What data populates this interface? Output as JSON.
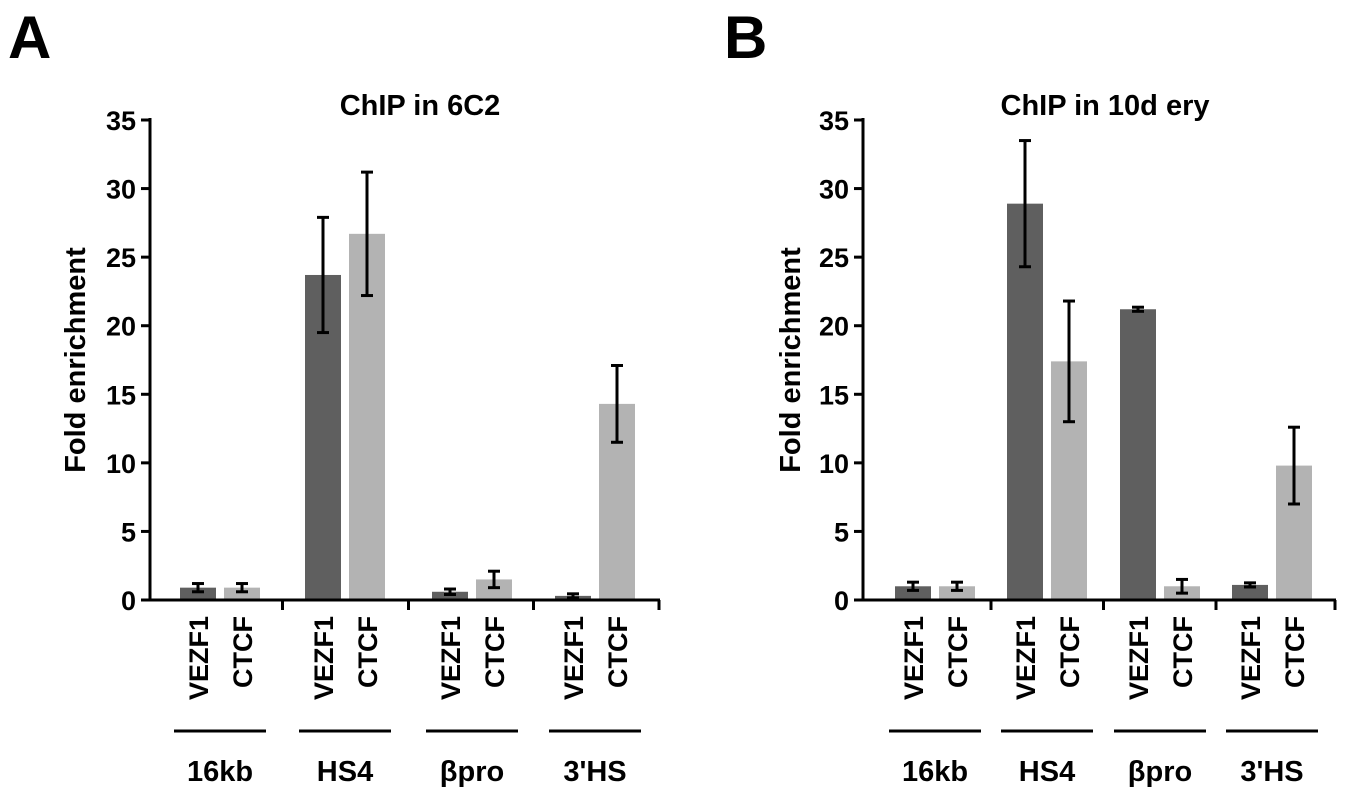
{
  "panels": [
    {
      "letter": "A"
    },
    {
      "letter": "B"
    }
  ],
  "colors": {
    "VEZF1": "#5f5f5f",
    "CTCF": "#b3b3b3",
    "axis": "#000000"
  },
  "chart_data": [
    {
      "type": "bar",
      "title": "ChIP in 6C2",
      "ylabel": "Fold enrichment",
      "xlabel": "",
      "ylim": [
        0,
        35
      ],
      "yticks": [
        0,
        5,
        10,
        15,
        20,
        25,
        30,
        35
      ],
      "groups": [
        "16kb",
        "HS4",
        "βpro",
        "3'HS"
      ],
      "series": [
        {
          "name": "VEZF1",
          "values": [
            0.9,
            23.7,
            0.6,
            0.3
          ],
          "errors": [
            0.3,
            4.2,
            0.2,
            0.15
          ]
        },
        {
          "name": "CTCF",
          "values": [
            0.9,
            26.7,
            1.5,
            14.3
          ],
          "errors": [
            0.3,
            4.5,
            0.6,
            2.8
          ]
        }
      ],
      "grid": false
    },
    {
      "type": "bar",
      "title": "ChIP in 10d ery",
      "ylabel": "Fold enrichment",
      "xlabel": "",
      "ylim": [
        0,
        35
      ],
      "yticks": [
        0,
        5,
        10,
        15,
        20,
        25,
        30,
        35
      ],
      "groups": [
        "16kb",
        "HS4",
        "βpro",
        "3'HS"
      ],
      "series": [
        {
          "name": "VEZF1",
          "values": [
            1.0,
            28.9,
            21.2,
            1.1
          ],
          "errors": [
            0.3,
            4.6,
            0.15,
            0.15
          ]
        },
        {
          "name": "CTCF",
          "values": [
            1.0,
            17.4,
            1.0,
            9.8
          ],
          "errors": [
            0.3,
            4.4,
            0.5,
            2.8
          ]
        }
      ],
      "grid": false
    }
  ]
}
